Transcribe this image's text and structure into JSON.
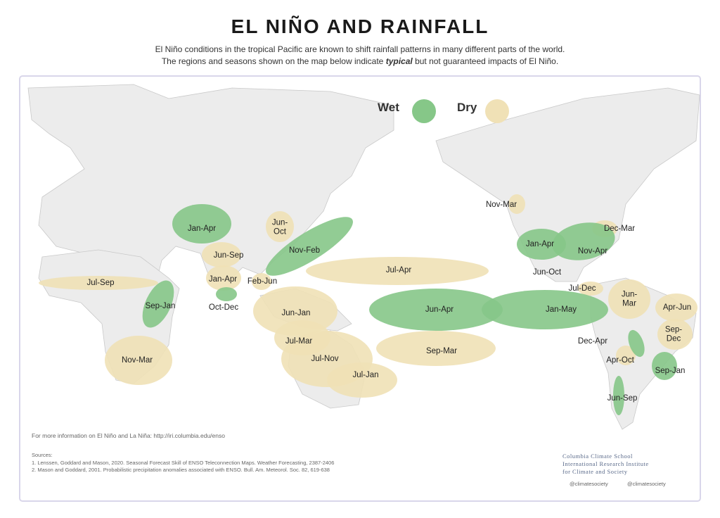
{
  "header": {
    "title": "EL NIÑO AND RAINFALL",
    "subtitle_line1": "El Niño conditions in the tropical Pacific are known to shift rainfall patterns in many different parts of the world.",
    "subtitle_line2_before": "The regions and seasons shown on the map below indicate",
    "subtitle_line2_emphasis": "typical",
    "subtitle_line2_after": "but not guaranteed impacts of El Niño."
  },
  "legend": {
    "wet": {
      "label": "Wet",
      "color": "#86c788"
    },
    "dry": {
      "label": "Dry",
      "color": "#f0e1b6"
    }
  },
  "wet_regions": [
    "Jan-Apr",
    "Nov-Feb",
    "Sep-Jan",
    "Oct-Dec",
    "Jun-Apr",
    "Jan-May",
    "Jan-Apr",
    "Nov-Apr",
    "Dec-Apr",
    "Sep-Jan",
    "Jun-Sep"
  ],
  "dry_regions": [
    "Jul-Sep",
    "Nov-Mar",
    "Jun-\nOct",
    "Jun-Sep",
    "Jan-Apr",
    "Feb-Jun",
    "Jul-Apr",
    "Jun-Jan",
    "Jul-Mar",
    "Jul-Nov",
    "Jul-Jan",
    "Sep-Mar",
    "Nov-Mar",
    "Dec-Mar",
    "Jun-Oct",
    "Jul-Dec",
    "Jun-\nMar",
    "Apr-Jun",
    "Sep-\nDec",
    "Apr-Oct"
  ],
  "footer": {
    "info": "For more information on El Niño and La Niña: http://iri.columbia.edu/enso",
    "sources_heading": "Sources:",
    "sources": [
      "1. Lenssen, Goddard and Mason, 2020. Seasonal Forecast Skill of ENSO Teleconnection Maps. Weather Forecasting, 2387-2406",
      "2. Mason and Goddard, 2001. Probabilistic precipitation anomalies associated with ENSO. Bull. Am. Meteorol. Soc. 82, 619-638"
    ],
    "credit": [
      "Columbia Climate School",
      "International Research Institute",
      "for Climate and Society"
    ],
    "social": [
      "@climatesociety",
      "@climatesociety"
    ]
  }
}
